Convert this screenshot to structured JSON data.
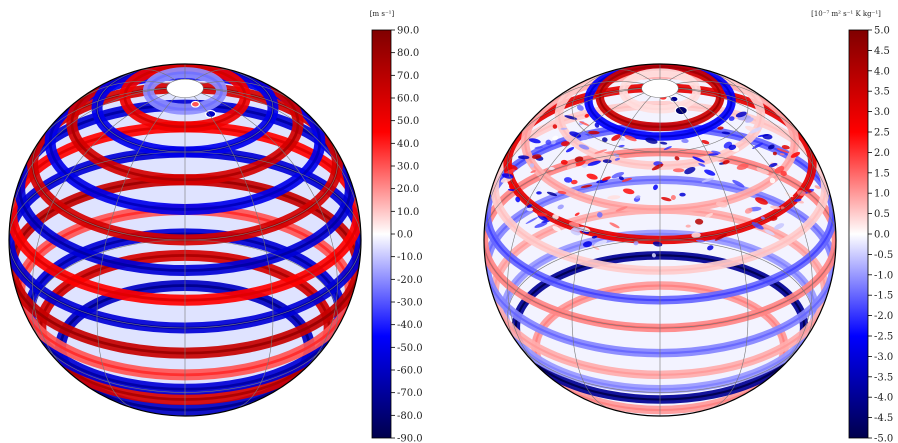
{
  "chart_data": [
    {
      "type": "heatmap",
      "projection": "orthographic globe",
      "colormap": "seismic (blue-white-red)",
      "units_label": "[m s⁻¹]",
      "colorbar_ticks": [
        "90.0",
        "80.0",
        "70.0",
        "60.0",
        "50.0",
        "40.0",
        "30.0",
        "20.0",
        "10.0",
        "0.0",
        "-10.0",
        "-20.0",
        "-30.0",
        "-40.0",
        "-50.0",
        "-60.0",
        "-70.0",
        "-80.0",
        "-90.0"
      ],
      "vmin": -90,
      "vmax": 90,
      "bands_north_to_south": [
        {
          "lat_deg": 88,
          "value": -10
        },
        {
          "lat_deg": 78,
          "value": -20
        },
        {
          "lat_deg": 70,
          "value": 50
        },
        {
          "lat_deg": 60,
          "value": -50
        },
        {
          "lat_deg": 50,
          "value": 60
        },
        {
          "lat_deg": 40,
          "value": -50
        },
        {
          "lat_deg": 30,
          "value": 60
        },
        {
          "lat_deg": 20,
          "value": -55
        },
        {
          "lat_deg": 10,
          "value": 45
        },
        {
          "lat_deg": 0,
          "value": -55
        },
        {
          "lat_deg": -10,
          "value": 65
        },
        {
          "lat_deg": -20,
          "value": 30
        },
        {
          "lat_deg": -28,
          "value": -55
        },
        {
          "lat_deg": -35,
          "value": 60
        },
        {
          "lat_deg": -45,
          "value": -60
        }
      ],
      "vortices_near_pole": [
        {
          "value": -60
        },
        {
          "value": 30
        }
      ]
    },
    {
      "type": "heatmap",
      "projection": "orthographic globe",
      "colormap": "seismic (blue-white-red)",
      "units_label": "[10⁻⁷ m² s⁻¹ K kg⁻¹]",
      "colorbar_ticks": [
        "5.0",
        "4.5",
        "4.0",
        "3.5",
        "3.0",
        "2.5",
        "2.0",
        "1.5",
        "1.0",
        "0.5",
        "0.0",
        "-0.5",
        "-1.0",
        "-1.5",
        "-2.0",
        "-2.5",
        "-3.0",
        "-3.5",
        "-4.0",
        "-4.5",
        "-5.0"
      ],
      "vmin": -5,
      "vmax": 5,
      "bands_north_to_south": [
        {
          "lat_deg": 88,
          "value": 0.2
        },
        {
          "lat_deg": 78,
          "value": 0.3
        },
        {
          "lat_deg": 70,
          "value": 3.5
        },
        {
          "lat_deg": 66,
          "value": -2.5
        },
        {
          "lat_deg": 55,
          "value": 0.5
        },
        {
          "lat_deg": 40,
          "value": 0.8
        },
        {
          "lat_deg": 30,
          "value": 3.0
        },
        {
          "lat_deg": 20,
          "value": 0.5
        },
        {
          "lat_deg": 10,
          "value": -1.5
        },
        {
          "lat_deg": 0,
          "value": 1.2
        },
        {
          "lat_deg": -10,
          "value": -1.2
        },
        {
          "lat_deg": -20,
          "value": 0.8
        },
        {
          "lat_deg": -28,
          "value": -1.0
        },
        {
          "lat_deg": -35,
          "value": -4.0
        },
        {
          "lat_deg": -45,
          "value": 1.0
        }
      ],
      "vortices_near_pole": [
        {
          "value": -4.5
        },
        {
          "value": -4.0
        },
        {
          "value": 2.0
        }
      ],
      "turbulent_region_latitudes_deg": [
        25,
        65
      ]
    }
  ]
}
